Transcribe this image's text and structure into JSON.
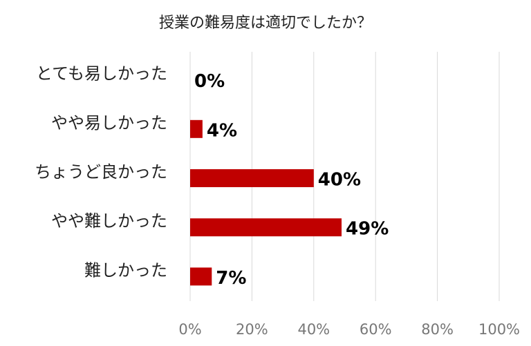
{
  "chart_data": {
    "type": "bar",
    "orientation": "horizontal",
    "title": "授業の難易度は適切でしたか？",
    "categories": [
      "とても易しかった",
      "やや易しかった",
      "ちょうど良かった",
      "やや難しかった",
      "難しかった"
    ],
    "values": [
      0,
      4,
      40,
      49,
      7
    ],
    "value_labels": [
      "0%",
      "4%",
      "40%",
      "49%",
      "7%"
    ],
    "color": "#c00000",
    "xlim": [
      0,
      100
    ],
    "xticks": [
      {
        "value": 0,
        "label": "0%"
      },
      {
        "value": 20,
        "label": "20%"
      },
      {
        "value": 40,
        "label": "40%"
      },
      {
        "value": 60,
        "label": "60%"
      },
      {
        "value": 80,
        "label": "80%"
      },
      {
        "value": 100,
        "label": "100%"
      }
    ],
    "grid": true
  }
}
